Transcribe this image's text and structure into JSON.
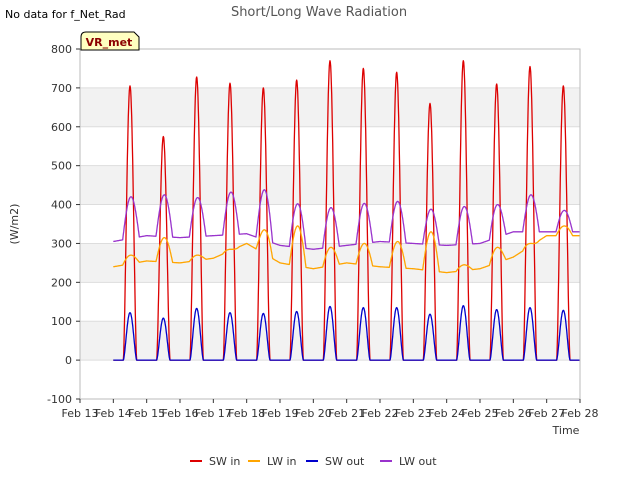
{
  "header": {
    "title": "Short/Long Wave Radiation",
    "no_data_note": "No data for f_Net_Rad",
    "station_badge": "VR_met"
  },
  "chart_data": {
    "type": "line",
    "title": "Short/Long Wave Radiation",
    "xlabel": "Time",
    "ylabel": "(W/m2)",
    "xlim": [
      "2024-02-13",
      "2024-02-28"
    ],
    "ylim": [
      -100,
      800
    ],
    "yticks": [
      -100,
      0,
      100,
      200,
      300,
      400,
      500,
      600,
      700,
      800
    ],
    "xticks": [
      "Feb 13",
      "Feb 14",
      "Feb 15",
      "Feb 16",
      "Feb 17",
      "Feb 18",
      "Feb 19",
      "Feb 20",
      "Feb 21",
      "Feb 22",
      "Feb 23",
      "Feb 24",
      "Feb 25",
      "Feb 26",
      "Feb 27",
      "Feb 28"
    ],
    "grid": true,
    "legend_position": "bottom",
    "days": [
      "2024-02-14",
      "2024-02-15",
      "2024-02-16",
      "2024-02-17",
      "2024-02-18",
      "2024-02-19",
      "2024-02-20",
      "2024-02-21",
      "2024-02-22",
      "2024-02-23",
      "2024-02-24",
      "2024-02-25",
      "2024-02-26",
      "2024-02-27"
    ],
    "series": [
      {
        "name": "SW in",
        "color": "#dd0000",
        "daily_peak": [
          705,
          575,
          728,
          712,
          700,
          720,
          770,
          750,
          740,
          660,
          770,
          710,
          755,
          705
        ]
      },
      {
        "name": "LW in",
        "color": "#ffa500",
        "daily_night": [
          240,
          255,
          250,
          262,
          300,
          250,
          235,
          250,
          240,
          235,
          225,
          235,
          265,
          320
        ],
        "daily_peak": [
          270,
          315,
          270,
          285,
          335,
          345,
          290,
          300,
          305,
          330,
          245,
          290,
          300,
          345
        ]
      },
      {
        "name": "SW out",
        "color": "#0000cc",
        "daily_peak": [
          122,
          108,
          133,
          122,
          120,
          125,
          138,
          135,
          135,
          118,
          140,
          130,
          135,
          128
        ]
      },
      {
        "name": "LW out",
        "color": "#9933cc",
        "daily_night": [
          305,
          320,
          315,
          320,
          325,
          295,
          285,
          295,
          305,
          300,
          295,
          300,
          330,
          330
        ],
        "daily_peak": [
          420,
          425,
          418,
          432,
          438,
          402,
          392,
          403,
          408,
          388,
          395,
          400,
          425,
          385
        ]
      }
    ]
  }
}
